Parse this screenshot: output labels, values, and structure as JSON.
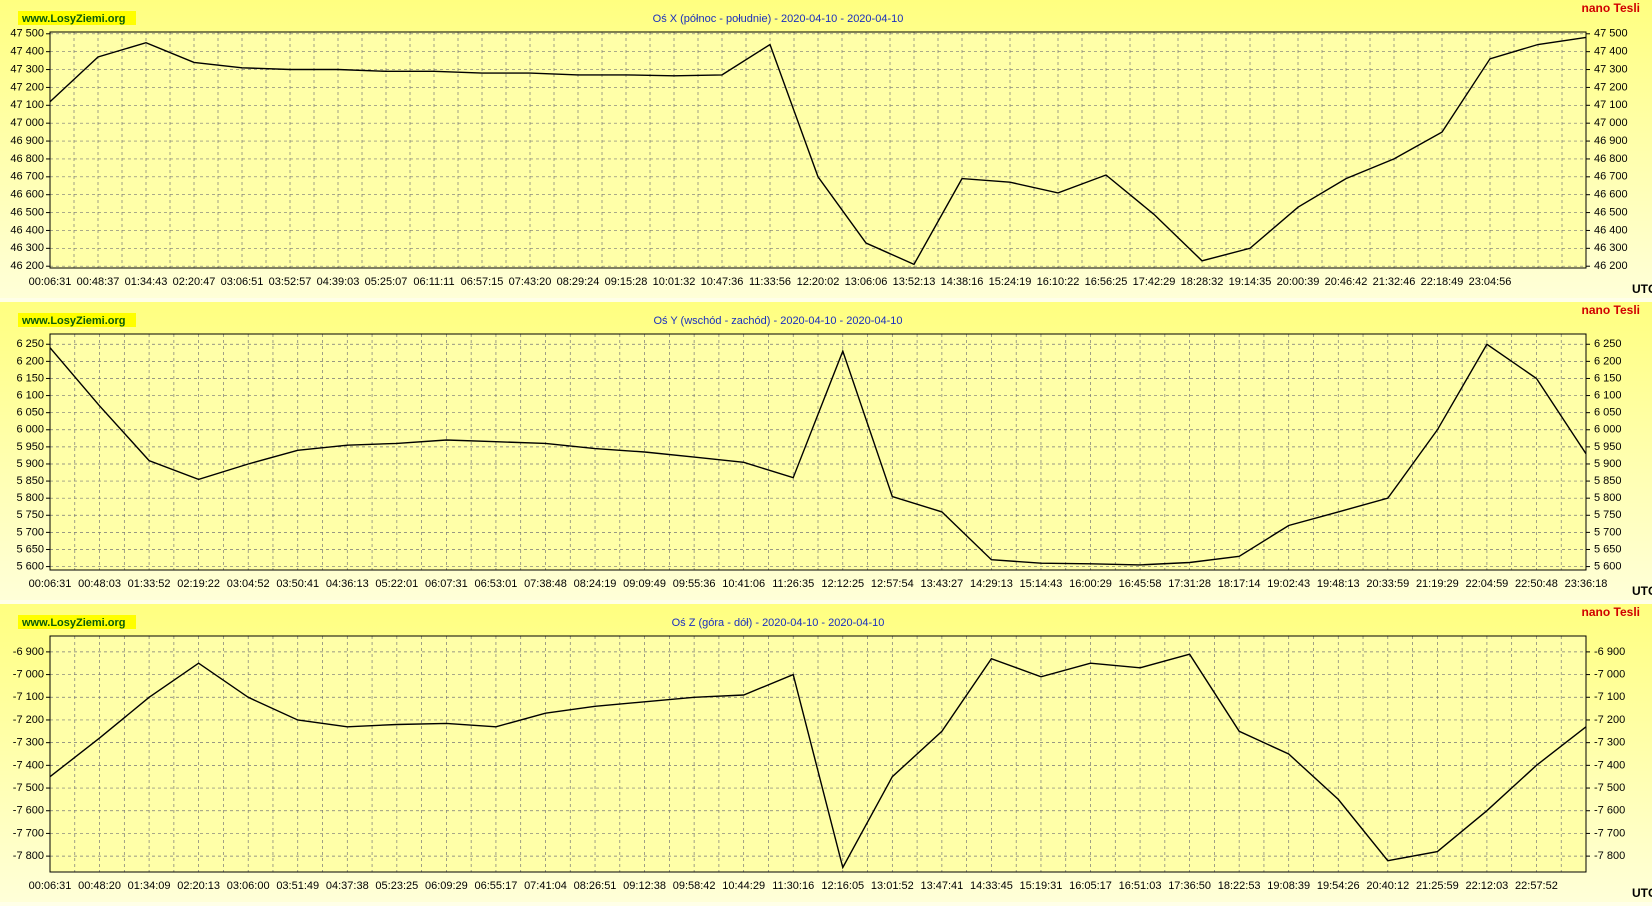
{
  "chart_data": [
    {
      "type": "line",
      "title": "Oś X (północ - południe) - 2020-04-10 - 2020-04-10",
      "site": "www.LosyZiemi.org",
      "unit": "nano Tesli",
      "x_label": "UTC",
      "categories": [
        "00:06:31",
        "00:48:37",
        "01:34:43",
        "02:20:47",
        "03:06:51",
        "03:52:57",
        "04:39:03",
        "05:25:07",
        "06:11:11",
        "06:57:15",
        "07:43:20",
        "08:29:24",
        "09:15:28",
        "10:01:32",
        "10:47:36",
        "11:33:56",
        "12:20:02",
        "13:06:06",
        "13:52:13",
        "14:38:16",
        "15:24:19",
        "16:10:22",
        "16:56:25",
        "17:42:29",
        "18:28:32",
        "19:14:35",
        "20:00:39",
        "20:46:42",
        "21:32:46",
        "22:18:49",
        "23:04:56",
        null,
        null
      ],
      "values": [
        47120,
        47370,
        47450,
        47340,
        47310,
        47300,
        47300,
        47290,
        47290,
        47280,
        47280,
        47270,
        47270,
        47265,
        47270,
        47440,
        46700,
        46330,
        46210,
        46690,
        46670,
        46610,
        46710,
        46490,
        46230,
        46300,
        46530,
        46690,
        46800,
        46950,
        47360,
        47440,
        47480
      ],
      "color": "#000000",
      "ylim": [
        46190,
        47510
      ],
      "yticks": [
        {
          "value": 46200,
          "label": "46 200"
        },
        {
          "value": 46300,
          "label": "46 300"
        },
        {
          "value": 46400,
          "label": "46 400"
        },
        {
          "value": 46500,
          "label": "46 500"
        },
        {
          "value": 46600,
          "label": "46 600"
        },
        {
          "value": 46700,
          "label": "46 700"
        },
        {
          "value": 46800,
          "label": "46 800"
        },
        {
          "value": 46900,
          "label": "46 900"
        },
        {
          "value": 47000,
          "label": "47 000"
        },
        {
          "value": 47100,
          "label": "47 100"
        },
        {
          "value": 47200,
          "label": "47 200"
        },
        {
          "value": 47300,
          "label": "47 300"
        },
        {
          "value": 47400,
          "label": "47 400"
        },
        {
          "value": 47500,
          "label": "47 500"
        }
      ],
      "grid": true
    },
    {
      "type": "line",
      "title": "Oś Y (wschód - zachód) - 2020-04-10 - 2020-04-10",
      "site": "www.LosyZiemi.org",
      "unit": "nano Tesli",
      "x_label": "UTC",
      "categories": [
        "00:06:31",
        "00:48:03",
        "01:33:52",
        "02:19:22",
        "03:04:52",
        "03:50:41",
        "04:36:13",
        "05:22:01",
        "06:07:31",
        "06:53:01",
        "07:38:48",
        "08:24:19",
        "09:09:49",
        "09:55:36",
        "10:41:06",
        "11:26:35",
        "12:12:25",
        "12:57:54",
        "13:43:27",
        "14:29:13",
        "15:14:43",
        "16:00:29",
        "16:45:58",
        "17:31:28",
        "18:17:14",
        "19:02:43",
        "19:48:13",
        "20:33:59",
        "21:19:29",
        "22:04:59",
        "22:50:48",
        "23:36:18"
      ],
      "values": [
        6240,
        6070,
        5910,
        5855,
        5900,
        5940,
        5955,
        5960,
        5970,
        5965,
        5960,
        5945,
        5935,
        5920,
        5905,
        5860,
        6230,
        5805,
        5760,
        5620,
        5610,
        5608,
        5605,
        5612,
        5630,
        5720,
        5760,
        5800,
        6000,
        6250,
        6150,
        5930
      ],
      "color": "#000000",
      "ylim": [
        5590,
        6280
      ],
      "yticks": [
        {
          "value": 5600,
          "label": "5 600"
        },
        {
          "value": 5650,
          "label": "5 650"
        },
        {
          "value": 5700,
          "label": "5 700"
        },
        {
          "value": 5750,
          "label": "5 750"
        },
        {
          "value": 5800,
          "label": "5 800"
        },
        {
          "value": 5850,
          "label": "5 850"
        },
        {
          "value": 5900,
          "label": "5 900"
        },
        {
          "value": 5950,
          "label": "5 950"
        },
        {
          "value": 6000,
          "label": "6 000"
        },
        {
          "value": 6050,
          "label": "6 050"
        },
        {
          "value": 6100,
          "label": "6 100"
        },
        {
          "value": 6150,
          "label": "6 150"
        },
        {
          "value": 6200,
          "label": "6 200"
        },
        {
          "value": 6250,
          "label": "6 250"
        }
      ],
      "grid": true
    },
    {
      "type": "line",
      "title": "Oś Z (góra - dół) - 2020-04-10 - 2020-04-10",
      "site": "www.LosyZiemi.org",
      "unit": "nano Tesli",
      "x_label": "UTC",
      "categories": [
        "00:06:31",
        "00:48:20",
        "01:34:09",
        "02:20:13",
        "03:06:00",
        "03:51:49",
        "04:37:38",
        "05:23:25",
        "06:09:29",
        "06:55:17",
        "07:41:04",
        "08:26:51",
        "09:12:38",
        "09:58:42",
        "10:44:29",
        "11:30:16",
        "12:16:05",
        "13:01:52",
        "13:47:41",
        "14:33:45",
        "15:19:31",
        "16:05:17",
        "16:51:03",
        "17:36:50",
        "18:22:53",
        "19:08:39",
        "19:54:26",
        "20:40:12",
        "21:25:59",
        "22:12:03",
        "22:57:52",
        null
      ],
      "values": [
        -7450,
        -7280,
        -7100,
        -6950,
        -7100,
        -7200,
        -7230,
        -7220,
        -7215,
        -7230,
        -7170,
        -7140,
        -7120,
        -7100,
        -7090,
        -7000,
        -7850,
        -7450,
        -7250,
        -6930,
        -7010,
        -6950,
        -6970,
        -6910,
        -7250,
        -7350,
        -7550,
        -7820,
        -7780,
        -7600,
        -7400,
        -7230
      ],
      "color": "#000000",
      "ylim": [
        -7870,
        -6830
      ],
      "yticks": [
        {
          "value": -7800,
          "label": "-7 800"
        },
        {
          "value": -7700,
          "label": "-7 700"
        },
        {
          "value": -7600,
          "label": "-7 600"
        },
        {
          "value": -7500,
          "label": "-7 500"
        },
        {
          "value": -7400,
          "label": "-7 400"
        },
        {
          "value": -7300,
          "label": "-7 300"
        },
        {
          "value": -7200,
          "label": "-7 200"
        },
        {
          "value": -7100,
          "label": "-7 100"
        },
        {
          "value": -7000,
          "label": "-7 000"
        },
        {
          "value": -6900,
          "label": "-6 900"
        }
      ],
      "grid": true
    }
  ]
}
